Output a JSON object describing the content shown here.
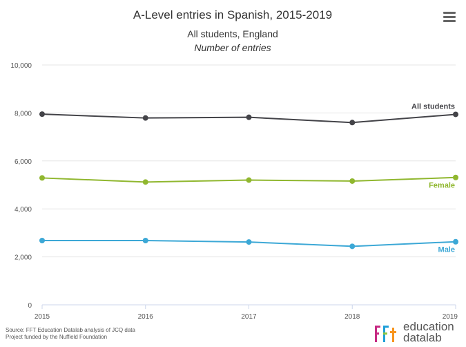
{
  "menu": {
    "icon": "hamburger-menu-icon"
  },
  "footer": {
    "source_line1": "Source: FFT Education Datalab analysis of JCQ data",
    "source_line2": "Project funded by the Nuffield Foundation"
  },
  "logo": {
    "mark": "fft",
    "line1": "education",
    "line2": "datalab",
    "colors": [
      "#c62a82",
      "#1f9fd8",
      "#8dc63f",
      "#f7941d"
    ]
  },
  "chart_data": {
    "type": "line",
    "title": "A-Level entries in Spanish, 2015-2019",
    "subtitle": "All students, England",
    "subtitle2": "Number of entries",
    "x": [
      "2015",
      "2016",
      "2017",
      "2018",
      "2019"
    ],
    "ylim": [
      0,
      10000
    ],
    "yticks": [
      "0",
      "2,000",
      "4,000",
      "6,000",
      "8,000",
      "10,000"
    ],
    "grid": true,
    "legend": "inline labels at line ends",
    "series": [
      {
        "name": "All students",
        "values": [
          7950,
          7790,
          7820,
          7600,
          7940
        ],
        "color": "#434348"
      },
      {
        "name": "Female",
        "values": [
          5290,
          5120,
          5200,
          5160,
          5310
        ],
        "color": "#90b72f"
      },
      {
        "name": "Male",
        "values": [
          2680,
          2680,
          2620,
          2440,
          2630
        ],
        "color": "#3ca8d6"
      }
    ]
  }
}
